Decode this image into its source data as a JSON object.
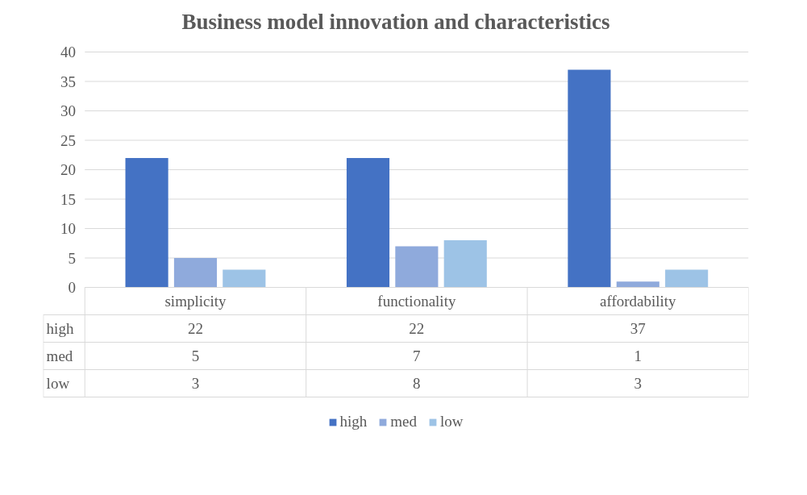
{
  "chart_data": {
    "type": "bar",
    "title": "Business model innovation and characteristics",
    "categories": [
      "simplicity",
      "functionality",
      "affordability"
    ],
    "series": [
      {
        "name": "high",
        "color": "#4472c4",
        "values": [
          22,
          22,
          37
        ]
      },
      {
        "name": "med",
        "color": "#8faadc",
        "values": [
          5,
          7,
          1
        ]
      },
      {
        "name": "low",
        "color": "#9dc3e6",
        "values": [
          3,
          8,
          3
        ]
      }
    ],
    "ylim": [
      0,
      40
    ],
    "yticks": [
      0,
      5,
      10,
      15,
      20,
      25,
      30,
      35,
      40
    ],
    "grid": "y",
    "legend": "bottom",
    "data_labels": true
  }
}
